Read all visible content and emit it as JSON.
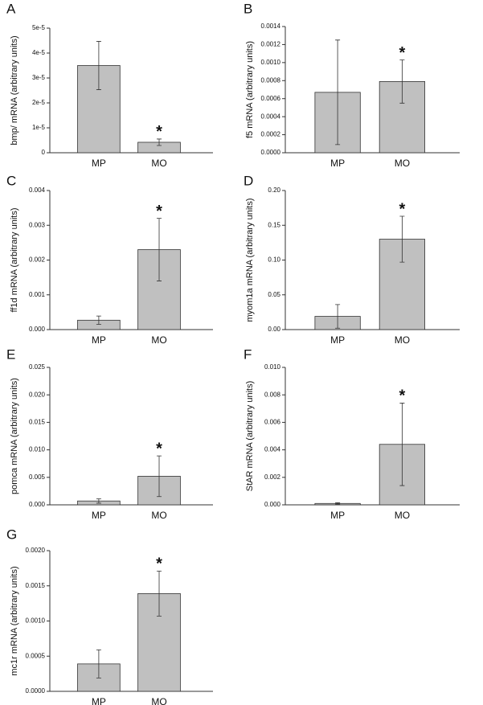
{
  "chart_data": [
    {
      "type": "bar",
      "label": "A",
      "y_label": "bmp/ mRNA (arbitrary units)",
      "categories": [
        "MP",
        "MO"
      ],
      "values": [
        3.5e-05,
        4.2e-06
      ],
      "errors": [
        9.7e-06,
        1.3e-06
      ],
      "color": "#c0c0c0",
      "annotation": "*",
      "ylim": [
        0,
        5e-05
      ],
      "yticks": [
        {
          "value": 0,
          "label": "0"
        },
        {
          "value": 1e-05,
          "label": "1e-5"
        },
        {
          "value": 2e-05,
          "label": "2e-5"
        },
        {
          "value": 3e-05,
          "label": "3e-5"
        },
        {
          "value": 4e-05,
          "label": "4e-5"
        },
        {
          "value": 5e-05,
          "label": "5e-5"
        }
      ]
    },
    {
      "type": "bar",
      "label": "B",
      "y_label": "f5 mRNA (arbitrary units)",
      "categories": [
        "MP",
        "MO"
      ],
      "values": [
        0.00067,
        0.00079
      ],
      "errors": [
        0.00058,
        0.00024
      ],
      "color": "#c0c0c0",
      "annotation": "*",
      "ylim": [
        0,
        0.0014
      ],
      "yticks": [
        {
          "value": 0,
          "label": "0.0000"
        },
        {
          "value": 0.0002,
          "label": "0.0002"
        },
        {
          "value": 0.0004,
          "label": "0.0004"
        },
        {
          "value": 0.0006,
          "label": "0.0006"
        },
        {
          "value": 0.0008,
          "label": "0.0008"
        },
        {
          "value": 0.001,
          "label": "0.0010"
        },
        {
          "value": 0.0012,
          "label": "0.0012"
        },
        {
          "value": 0.0014,
          "label": "0.0014"
        }
      ]
    },
    {
      "type": "bar",
      "label": "C",
      "y_label": "ff1d mRNA (arbitrary units)",
      "categories": [
        "MP",
        "MO"
      ],
      "values": [
        0.00027,
        0.0023
      ],
      "errors": [
        0.00012,
        0.0009
      ],
      "color": "#c0c0c0",
      "annotation": "*",
      "ylim": [
        0,
        0.004
      ],
      "yticks": [
        {
          "value": 0,
          "label": "0.000"
        },
        {
          "value": 0.001,
          "label": "0.001"
        },
        {
          "value": 0.002,
          "label": "0.002"
        },
        {
          "value": 0.003,
          "label": "0.003"
        },
        {
          "value": 0.004,
          "label": "0.004"
        }
      ]
    },
    {
      "type": "bar",
      "label": "D",
      "y_label": "myom1a mRNA (arbitrary units)",
      "categories": [
        "MP",
        "MO"
      ],
      "values": [
        0.019,
        0.13
      ],
      "errors": [
        0.017,
        0.033
      ],
      "color": "#c0c0c0",
      "annotation": "*",
      "ylim": [
        0,
        0.2
      ],
      "yticks": [
        {
          "value": 0,
          "label": "0.00"
        },
        {
          "value": 0.05,
          "label": "0.05"
        },
        {
          "value": 0.1,
          "label": "0.10"
        },
        {
          "value": 0.15,
          "label": "0.15"
        },
        {
          "value": 0.2,
          "label": "0.20"
        }
      ]
    },
    {
      "type": "bar",
      "label": "E",
      "y_label": "pomca mRNA (arbitrary units)",
      "categories": [
        "MP",
        "MO"
      ],
      "values": [
        0.0007,
        0.0052
      ],
      "errors": [
        0.0004,
        0.0037
      ],
      "color": "#c0c0c0",
      "annotation": "*",
      "ylim": [
        0,
        0.025
      ],
      "yticks": [
        {
          "value": 0,
          "label": "0.000"
        },
        {
          "value": 0.005,
          "label": "0.005"
        },
        {
          "value": 0.01,
          "label": "0.010"
        },
        {
          "value": 0.015,
          "label": "0.015"
        },
        {
          "value": 0.02,
          "label": "0.020"
        },
        {
          "value": 0.025,
          "label": "0.025"
        }
      ]
    },
    {
      "type": "bar",
      "label": "F",
      "y_label": "StAR mRNA (arbitrary units)",
      "categories": [
        "MP",
        "MO"
      ],
      "values": [
        0.0001,
        0.0044
      ],
      "errors": [
        5e-05,
        0.003
      ],
      "color": "#c0c0c0",
      "annotation": "*",
      "ylim": [
        0,
        0.01
      ],
      "yticks": [
        {
          "value": 0,
          "label": "0.000"
        },
        {
          "value": 0.002,
          "label": "0.002"
        },
        {
          "value": 0.004,
          "label": "0.004"
        },
        {
          "value": 0.006,
          "label": "0.006"
        },
        {
          "value": 0.008,
          "label": "0.008"
        },
        {
          "value": 0.01,
          "label": "0.010"
        }
      ]
    },
    {
      "type": "bar",
      "label": "G",
      "y_label": "mc1r mRNA (arbitrary units)",
      "categories": [
        "MP",
        "MO"
      ],
      "values": [
        0.00039,
        0.00139
      ],
      "errors": [
        0.0002,
        0.00032
      ],
      "color": "#c0c0c0",
      "annotation": "*",
      "ylim": [
        0,
        0.002
      ],
      "yticks": [
        {
          "value": 0,
          "label": "0.0000"
        },
        {
          "value": 0.0005,
          "label": "0.0005"
        },
        {
          "value": 0.001,
          "label": "0.0010"
        },
        {
          "value": 0.0015,
          "label": "0.0015"
        },
        {
          "value": 0.002,
          "label": "0.0020"
        }
      ]
    }
  ]
}
